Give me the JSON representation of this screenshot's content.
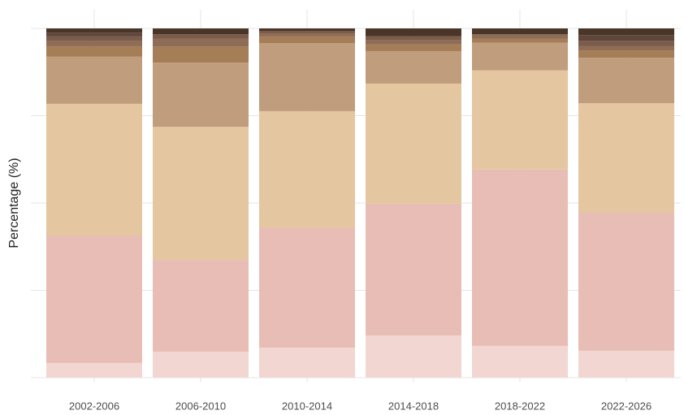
{
  "chart_data": {
    "type": "stacked_bar",
    "ylabel": "Percentage (%)",
    "categories": [
      "2002-2006",
      "2006-2010",
      "2010-2014",
      "2014-2018",
      "2018-2022",
      "2022-2026"
    ],
    "ylim": [
      0,
      100
    ],
    "yticks": [
      0,
      25,
      50,
      75,
      100
    ],
    "grid": true,
    "series": [
      {
        "color": "#f2d6d1",
        "values": [
          4.2,
          7.4,
          8.6,
          12.1,
          9.1,
          7.7
        ]
      },
      {
        "color": "#e8bdb5",
        "values": [
          36.5,
          26.3,
          34.2,
          37.7,
          50.5,
          39.5
        ]
      },
      {
        "color": "#e4c6a1",
        "values": [
          37.7,
          38.1,
          33.5,
          34.4,
          28.4,
          31.4
        ]
      },
      {
        "color": "#c09e7d",
        "values": [
          13.5,
          18.4,
          19.5,
          9.3,
          7.9,
          13.0
        ]
      },
      {
        "color": "#a57d57",
        "values": [
          3.0,
          4.6,
          1.9,
          1.9,
          1.2,
          2.1
        ]
      },
      {
        "color": "#8e6c55",
        "values": [
          1.6,
          2.3,
          0.9,
          1.2,
          1.2,
          1.2
        ]
      },
      {
        "color": "#7b5c4b",
        "values": [
          1.2,
          1.2,
          0.7,
          1.2,
          null,
          1.6
        ]
      },
      {
        "color": "#5f463a",
        "values": [
          1.1,
          null,
          null,
          null,
          null,
          1.6
        ]
      },
      {
        "color": "#4a3628",
        "values": [
          1.2,
          1.7,
          0.7,
          2.2,
          1.7,
          1.9
        ]
      }
    ]
  }
}
